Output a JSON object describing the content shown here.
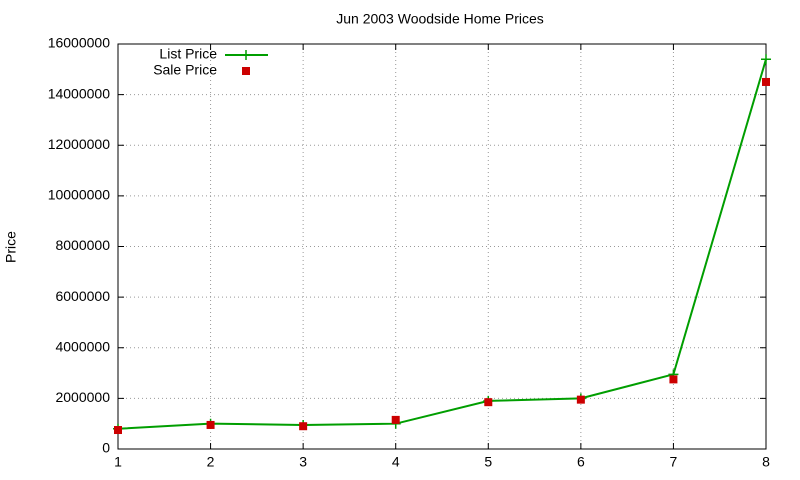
{
  "chart_data": {
    "type": "line",
    "title": "Jun 2003 Woodside Home Prices",
    "y_label": "Price",
    "x": [
      1,
      2,
      3,
      4,
      5,
      6,
      7,
      8
    ],
    "series": [
      {
        "name": "List Price",
        "color": "#009e00",
        "style": "linespoints",
        "values": [
          800000,
          1000000,
          950000,
          1000000,
          1900000,
          2000000,
          2950000,
          15400000
        ]
      },
      {
        "name": "Sale Price",
        "color": "#cc0000",
        "style": "points",
        "values": [
          750000,
          950000,
          900000,
          1150000,
          1850000,
          1950000,
          2750000,
          14500000
        ]
      }
    ],
    "xlim": [
      1,
      8
    ],
    "xticks": [
      1,
      2,
      3,
      4,
      5,
      6,
      7,
      8
    ],
    "ylim": [
      0,
      16000000
    ],
    "yticks": [
      0,
      2000000,
      4000000,
      6000000,
      8000000,
      10000000,
      12000000,
      14000000,
      16000000
    ],
    "grid": true,
    "legend": "top-left"
  }
}
